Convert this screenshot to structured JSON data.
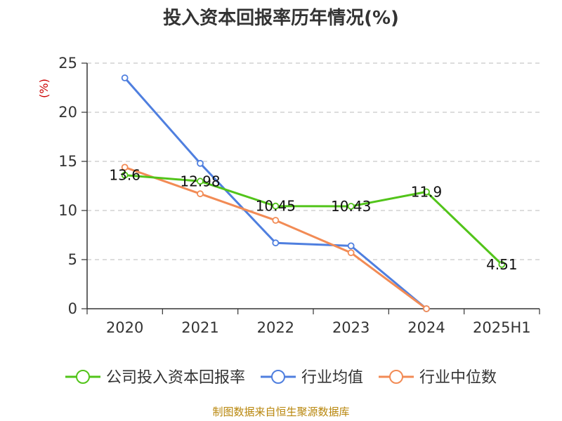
{
  "chart_data": {
    "type": "line",
    "title": "投入资本回报率历年情况(%)",
    "ylabel": "(%)",
    "xlabel": "",
    "categories": [
      "2020",
      "2021",
      "2022",
      "2023",
      "2024",
      "2025H1"
    ],
    "ylim": [
      0,
      25
    ],
    "yticks": [
      0,
      5,
      10,
      15,
      20,
      25
    ],
    "grid": true,
    "legend_position": "bottom",
    "series": [
      {
        "name": "公司投入资本回报率",
        "color": "#52c41a",
        "values": [
          13.6,
          12.98,
          10.45,
          10.43,
          11.9,
          4.51
        ],
        "labels": [
          "13.6",
          "12.98",
          "10.45",
          "10.43",
          "11.9",
          "4.51"
        ]
      },
      {
        "name": "行业均值",
        "color": "#4f7fdf",
        "values": [
          23.5,
          14.8,
          6.7,
          6.4,
          0.0,
          null
        ]
      },
      {
        "name": "行业中位数",
        "color": "#f28b55",
        "values": [
          14.4,
          11.7,
          9.0,
          5.7,
          0.0,
          null
        ]
      }
    ]
  },
  "source_note": "制图数据来自恒生聚源数据库"
}
